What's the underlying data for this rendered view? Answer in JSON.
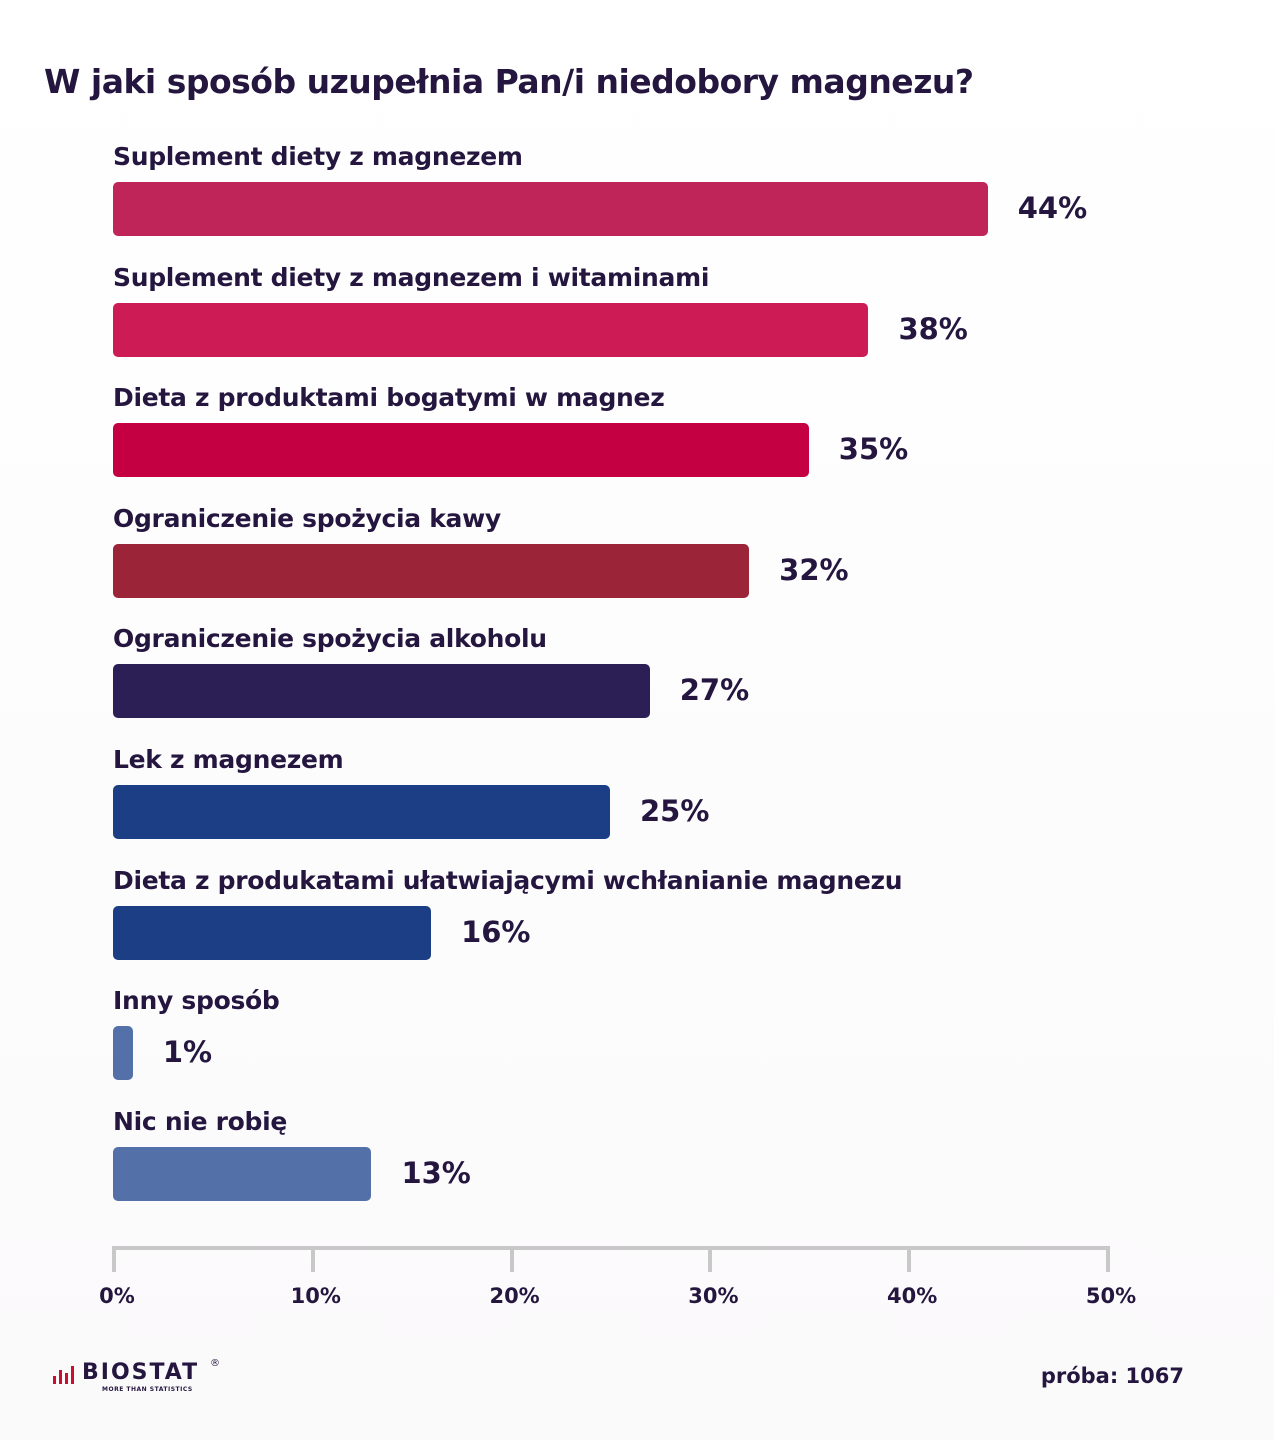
{
  "title": "W jaki sposób uzupełnia Pan/i niedobory magnezu?",
  "chart_data": {
    "type": "bar",
    "orientation": "horizontal",
    "title": "W jaki sposób uzupełnia Pan/i niedobory magnezu?",
    "categories": [
      "Suplement diety z magnezem",
      "Suplement diety z magnezem i witaminami",
      "Dieta z produktami bogatymi w magnez",
      "Ograniczenie spożycia kawy",
      "Ograniczenie spożycia alkoholu",
      "Lek z magnezem",
      "Dieta z produkatami ułatwiającymi wchłanianie magnezu",
      "Inny sposób",
      "Nic nie robię"
    ],
    "values": [
      44,
      38,
      35,
      32,
      27,
      25,
      16,
      1,
      13
    ],
    "value_labels": [
      "44%",
      "38%",
      "35%",
      "32%",
      "27%",
      "25%",
      "16%",
      "1%",
      "13%"
    ],
    "bar_colors": [
      "#c0255a",
      "#cc1b55",
      "#c40042",
      "#9c2438",
      "#2b1f55",
      "#1b3e84",
      "#1b3e84",
      "#5370a8",
      "#5370a8"
    ],
    "xlim": [
      0,
      50
    ],
    "x_ticks": [
      0,
      10,
      20,
      30,
      40,
      50
    ],
    "x_tick_labels": [
      "0%",
      "10%",
      "20%",
      "30%",
      "40%",
      "50%"
    ],
    "xlabel": "",
    "ylabel": "",
    "grid": false,
    "legend": "none"
  },
  "footer": {
    "logo_text": "BIOSTAT",
    "logo_tagline": "MORE THAN STATISTICS",
    "logo_registered": "®",
    "sample": "próba: 1067"
  }
}
